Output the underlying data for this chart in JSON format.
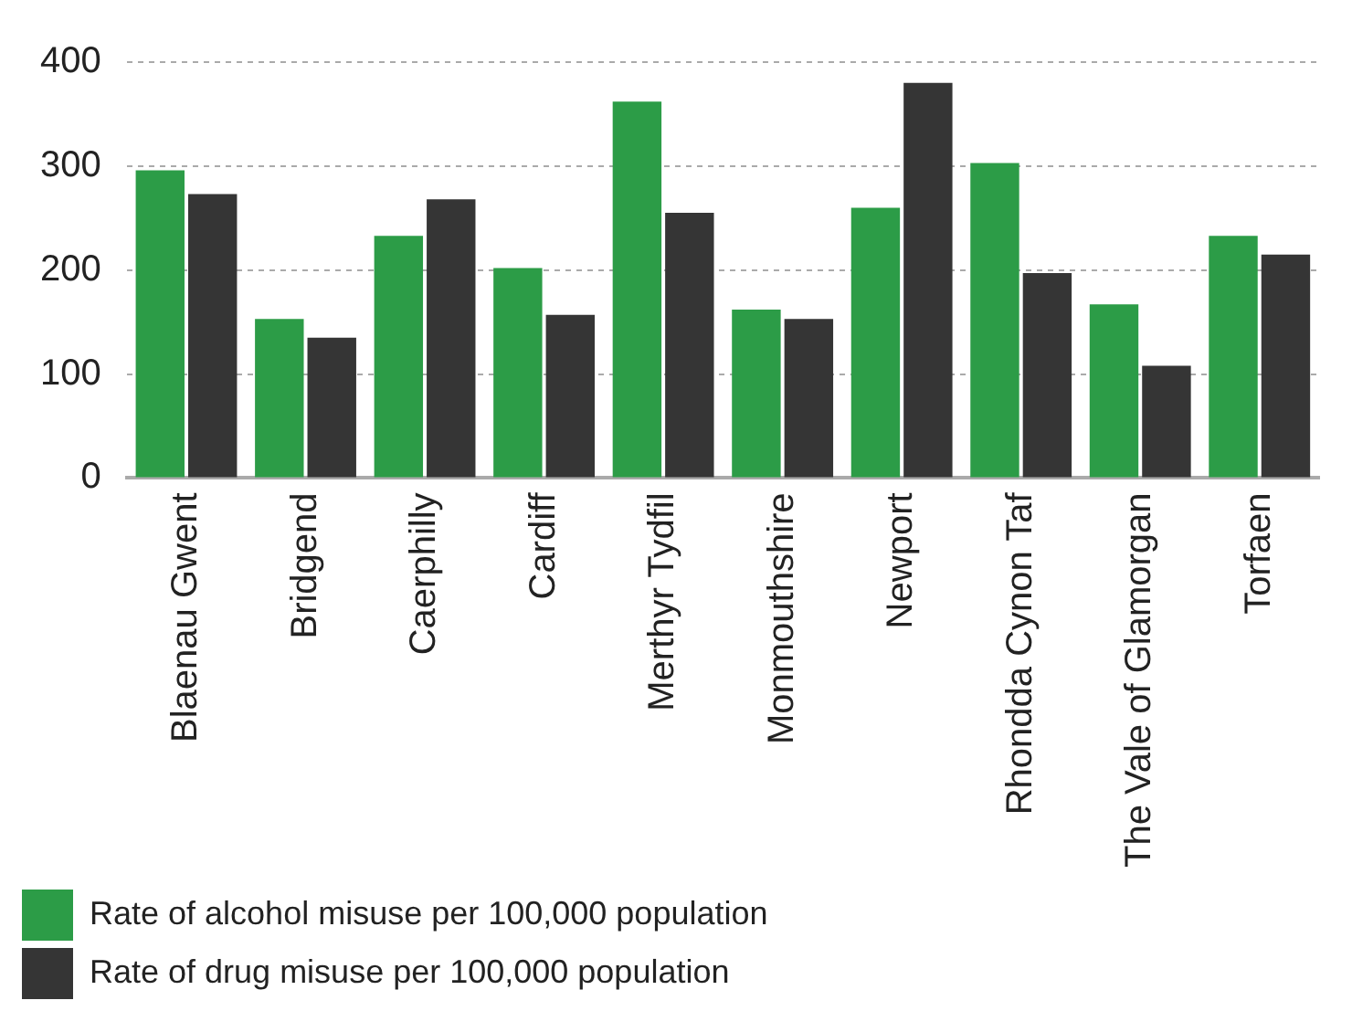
{
  "chart_data": {
    "type": "bar",
    "categories": [
      "Blaenau Gwent",
      "Bridgend",
      "Caerphilly",
      "Cardiff",
      "Merthyr Tydfil",
      "Monmouthshire",
      "Newport",
      "Rhondda Cynon Taf",
      "The Vale of Glamorgan",
      "Torfaen"
    ],
    "series": [
      {
        "name": "Rate of alcohol misuse per 100,000 population",
        "color": "#2c9c47",
        "values": [
          296,
          153,
          233,
          202,
          362,
          162,
          260,
          303,
          167,
          233
        ]
      },
      {
        "name": "Rate of drug misuse per 100,000 population",
        "color": "#353535",
        "values": [
          273,
          135,
          268,
          157,
          255,
          153,
          380,
          197,
          108,
          215
        ]
      }
    ],
    "ylim": [
      0,
      400
    ],
    "yticks": [
      0,
      100,
      200,
      300,
      400
    ],
    "grid": "y",
    "legend": "bottom left"
  }
}
